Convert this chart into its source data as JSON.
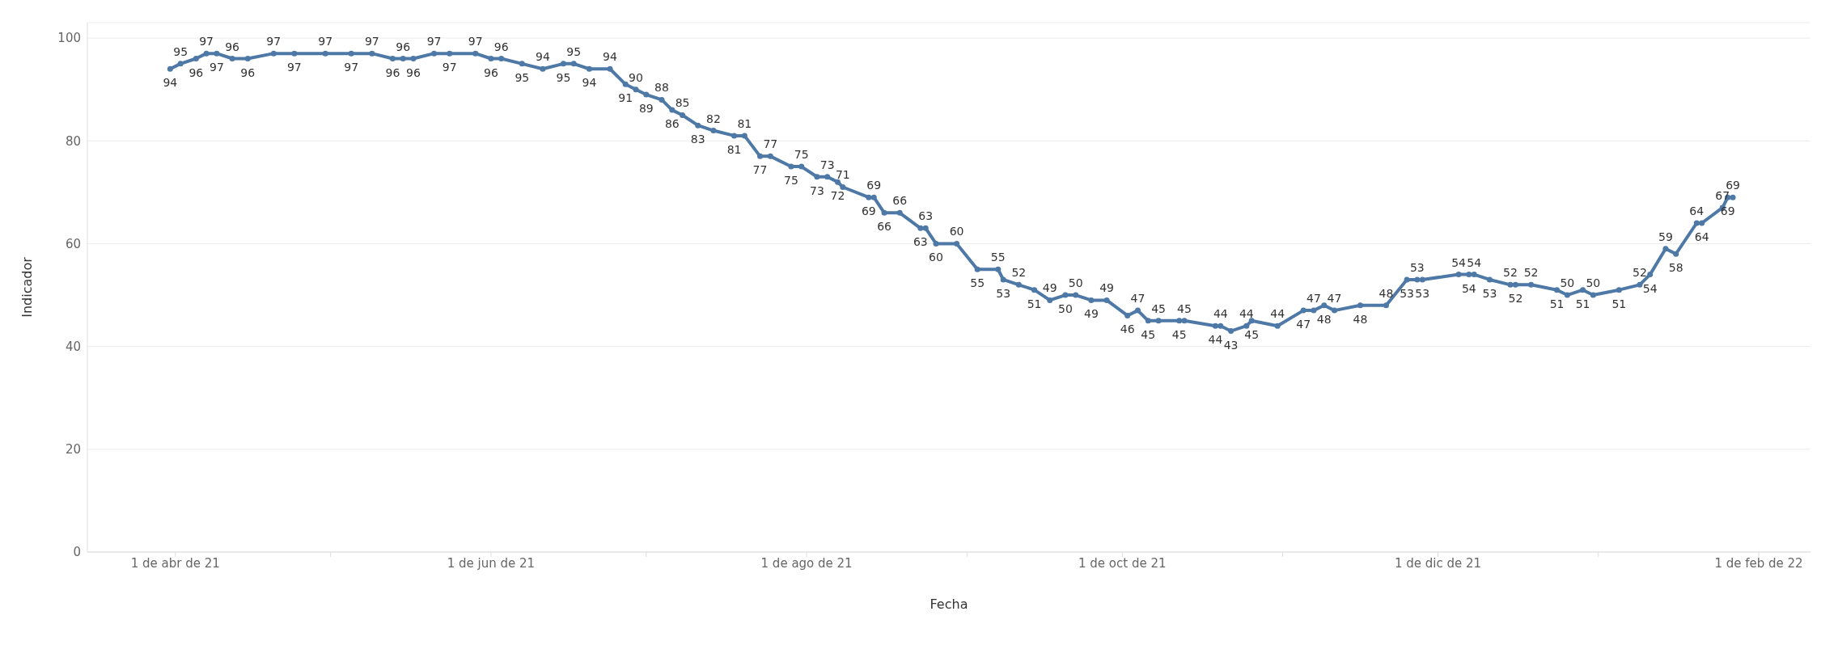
{
  "chart_data": {
    "type": "line",
    "xlabel": "Fecha",
    "ylabel": "Indicador",
    "x": [
      "2021-03-31",
      "2021-04-02",
      "2021-04-05",
      "2021-04-07",
      "2021-04-09",
      "2021-04-12",
      "2021-04-15",
      "2021-04-20",
      "2021-04-24",
      "2021-04-30",
      "2021-05-05",
      "2021-05-09",
      "2021-05-13",
      "2021-05-15",
      "2021-05-17",
      "2021-05-21",
      "2021-05-24",
      "2021-05-29",
      "2021-06-01",
      "2021-06-03",
      "2021-06-07",
      "2021-06-11",
      "2021-06-15",
      "2021-06-17",
      "2021-06-20",
      "2021-06-24",
      "2021-06-27",
      "2021-06-29",
      "2021-07-01",
      "2021-07-04",
      "2021-07-06",
      "2021-07-08",
      "2021-07-11",
      "2021-07-14",
      "2021-07-18",
      "2021-07-20",
      "2021-07-23",
      "2021-07-25",
      "2021-07-29",
      "2021-07-31",
      "2021-08-03",
      "2021-08-05",
      "2021-08-07",
      "2021-08-08",
      "2021-08-13",
      "2021-08-14",
      "2021-08-16",
      "2021-08-19",
      "2021-08-23",
      "2021-08-24",
      "2021-08-26",
      "2021-08-30",
      "2021-09-03",
      "2021-09-07",
      "2021-09-08",
      "2021-09-11",
      "2021-09-14",
      "2021-09-17",
      "2021-09-20",
      "2021-09-22",
      "2021-09-25",
      "2021-09-28",
      "2021-10-02",
      "2021-10-04",
      "2021-10-06",
      "2021-10-08",
      "2021-10-12",
      "2021-10-13",
      "2021-10-19",
      "2021-10-20",
      "2021-10-22",
      "2021-10-25",
      "2021-10-26",
      "2021-10-31",
      "2021-11-05",
      "2021-11-07",
      "2021-11-09",
      "2021-11-11",
      "2021-11-16",
      "2021-11-21",
      "2021-11-25",
      "2021-11-27",
      "2021-11-28",
      "2021-12-05",
      "2021-12-07",
      "2021-12-08",
      "2021-12-11",
      "2021-12-15",
      "2021-12-16",
      "2021-12-19",
      "2021-12-24",
      "2021-12-26",
      "2021-12-29",
      "2021-12-31",
      "2022-01-05",
      "2022-01-09",
      "2022-01-11",
      "2022-01-14",
      "2022-01-16",
      "2022-01-20",
      "2022-01-21",
      "2022-01-25",
      "2022-01-26",
      "2022-01-27"
    ],
    "series": [
      {
        "color": "#4e79a7",
        "values": [
          94,
          95,
          96,
          97,
          97,
          96,
          96,
          97,
          97,
          97,
          97,
          97,
          96,
          96,
          96,
          97,
          97,
          97,
          96,
          96,
          95,
          94,
          95,
          95,
          94,
          94,
          91,
          90,
          89,
          88,
          86,
          85,
          83,
          82,
          81,
          81,
          77,
          77,
          75,
          75,
          73,
          73,
          72,
          71,
          69,
          69,
          66,
          66,
          63,
          63,
          60,
          60,
          55,
          55,
          53,
          52,
          51,
          49,
          50,
          50,
          49,
          49,
          46,
          47,
          45,
          45,
          45,
          45,
          44,
          44,
          43,
          44,
          45,
          44,
          47,
          47,
          48,
          47,
          48,
          48,
          53,
          53,
          53,
          54,
          54,
          54,
          53,
          52,
          52,
          52,
          51,
          50,
          51,
          50,
          51,
          52,
          54,
          59,
          58,
          64,
          64,
          67,
          69,
          69
        ]
      }
    ],
    "xlim": [
      "2021-03-15",
      "2022-02-11"
    ],
    "xticks": [
      {
        "value": "2021-04-01",
        "label": "1 de abr de 21"
      },
      {
        "value": "2021-05-01",
        "label": null
      },
      {
        "value": "2021-06-01",
        "label": "1 de jun de 21"
      },
      {
        "value": "2021-07-01",
        "label": null
      },
      {
        "value": "2021-08-01",
        "label": "1 de ago de 21"
      },
      {
        "value": "2021-09-01",
        "label": null
      },
      {
        "value": "2021-10-01",
        "label": "1 de oct de 21"
      },
      {
        "value": "2021-11-01",
        "label": null
      },
      {
        "value": "2021-12-01",
        "label": "1 de dic de 21"
      },
      {
        "value": "2022-01-01",
        "label": null
      },
      {
        "value": "2022-02-01",
        "label": "1 de feb de 22"
      }
    ],
    "ylim": [
      0,
      103
    ],
    "yticks": [
      0,
      20,
      40,
      60,
      80,
      100
    ],
    "grid": "y",
    "marker": "circle",
    "line_style": "solid",
    "data_labels": true
  }
}
